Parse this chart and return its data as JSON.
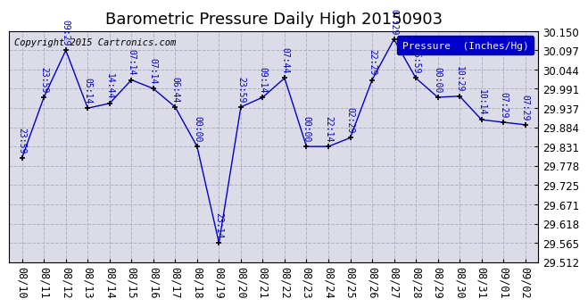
{
  "title": "Barometric Pressure Daily High 20150903",
  "copyright": "Copyright 2015 Cartronics.com",
  "legend_label": "Pressure  (Inches/Hg)",
  "background_color": "#ffffff",
  "plot_bg_color": "#dcdce8",
  "grid_color": "#b0b0c0",
  "line_color": "#0000cc",
  "marker_color": "#000000",
  "x_labels": [
    "08/10",
    "08/11",
    "08/12",
    "08/13",
    "08/14",
    "08/15",
    "08/16",
    "08/17",
    "08/18",
    "08/19",
    "08/20",
    "08/21",
    "08/22",
    "08/23",
    "08/24",
    "08/25",
    "08/26",
    "08/27",
    "08/28",
    "08/29",
    "08/30",
    "08/31",
    "09/01",
    "09/02"
  ],
  "y_values": [
    29.8,
    29.967,
    30.097,
    29.937,
    29.95,
    30.015,
    29.991,
    29.94,
    29.831,
    29.565,
    29.94,
    29.967,
    30.02,
    29.831,
    29.831,
    29.855,
    30.015,
    30.127,
    30.02,
    29.967,
    29.97,
    29.905,
    29.898,
    29.891
  ],
  "time_labels": [
    "23:59",
    "23:59",
    "09:29",
    "05:14",
    "14:44",
    "07:14",
    "07:14",
    "06:44",
    "00:00",
    "23:14",
    "23:59",
    "09:14",
    "07:44",
    "00:00",
    "22:14",
    "02:29",
    "22:29",
    "07:29",
    "06:59",
    "00:00",
    "10:29",
    "10:14",
    "07:29",
    "07:29"
  ],
  "ylim_min": 29.512,
  "ylim_max": 30.15,
  "yticks": [
    29.512,
    29.565,
    29.618,
    29.671,
    29.725,
    29.778,
    29.831,
    29.884,
    29.937,
    29.991,
    30.044,
    30.097,
    30.15
  ],
  "title_fontsize": 13,
  "label_fontsize": 7,
  "tick_fontsize": 8.5,
  "copyright_fontsize": 7.5
}
